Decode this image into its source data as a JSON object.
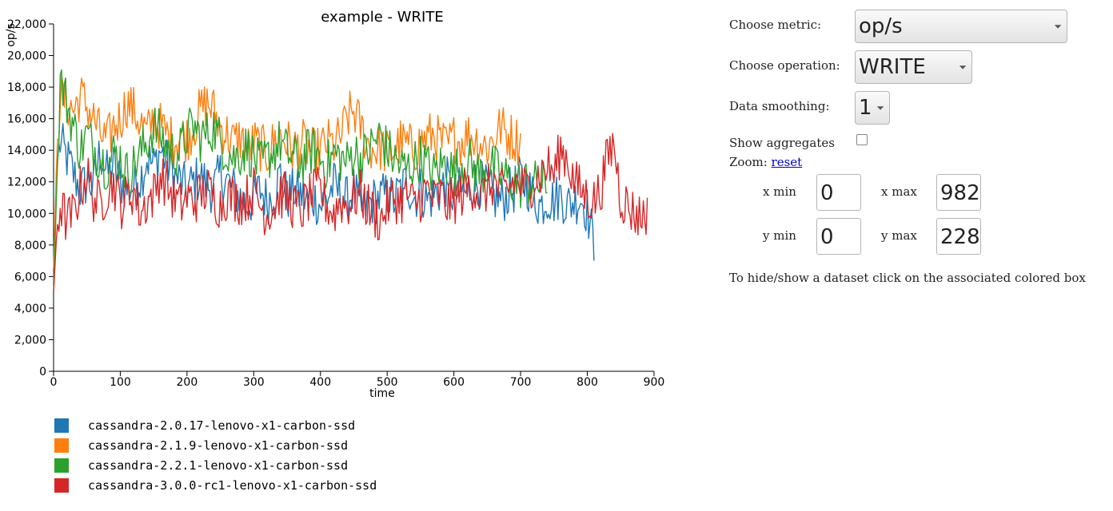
{
  "chart_data": {
    "type": "line",
    "title": "example - WRITE",
    "xlabel": "time",
    "ylabel": "op/s",
    "xlim": [
      0,
      930
    ],
    "ylim": [
      0,
      22000
    ],
    "x_ticks": [
      0,
      100,
      200,
      300,
      400,
      500,
      600,
      700,
      800,
      900
    ],
    "y_ticks": [
      0,
      2000,
      4000,
      6000,
      8000,
      10000,
      12000,
      14000,
      16000,
      18000,
      20000,
      22000
    ],
    "x_tick_labels": [
      "0",
      "100",
      "200",
      "300",
      "400",
      "500",
      "600",
      "700",
      "800",
      "900"
    ],
    "y_tick_labels": [
      "0",
      "2,000",
      "4,000",
      "6,000",
      "8,000",
      "10,000",
      "12,000",
      "14,000",
      "16,000",
      "18,000",
      "20,000",
      "22,000"
    ],
    "grid": false,
    "series": [
      {
        "name": "cassandra-2.0.17-lenovo-x1-carbon-ssd",
        "color": "#1f77b4",
        "x_end": 810,
        "x": [
          0,
          5,
          10,
          20,
          30,
          40,
          50,
          60,
          70,
          80,
          90,
          100,
          110,
          120,
          130,
          140,
          150,
          160,
          170,
          180,
          190,
          200,
          210,
          220,
          230,
          240,
          250,
          260,
          270,
          280,
          290,
          300,
          310,
          320,
          330,
          340,
          350,
          360,
          370,
          380,
          390,
          400,
          410,
          420,
          430,
          440,
          450,
          460,
          470,
          480,
          490,
          500,
          510,
          520,
          530,
          540,
          550,
          560,
          570,
          580,
          590,
          600,
          610,
          620,
          630,
          640,
          650,
          660,
          670,
          680,
          690,
          700,
          710,
          720,
          730,
          740,
          750,
          760,
          770,
          780,
          790,
          800,
          810
        ],
        "y": [
          5500,
          13000,
          14500,
          13500,
          12500,
          11500,
          12000,
          11800,
          14000,
          12500,
          13000,
          12000,
          11500,
          11800,
          12200,
          13500,
          13000,
          14000,
          13200,
          12500,
          12000,
          11500,
          12000,
          12300,
          11800,
          11500,
          12500,
          12000,
          11500,
          11000,
          10500,
          11000,
          11500,
          10800,
          11200,
          12500,
          11000,
          11500,
          11200,
          10800,
          11000,
          10500,
          11000,
          11800,
          11200,
          10800,
          11500,
          10200,
          10500,
          10800,
          11000,
          11200,
          10800,
          11500,
          12000,
          11000,
          11500,
          10800,
          11200,
          11500,
          12000,
          11000,
          11500,
          11200,
          12000,
          11800,
          11500,
          11000,
          10800,
          11200,
          11500,
          12200,
          11800,
          11000,
          10500,
          11000,
          10800,
          11200,
          10500,
          10800,
          11000,
          10200,
          8000
        ]
      },
      {
        "name": "cassandra-2.1.9-lenovo-x1-carbon-ssd",
        "color": "#ff7f0e",
        "x_end": 700,
        "x": [
          0,
          5,
          10,
          20,
          30,
          40,
          50,
          60,
          70,
          80,
          90,
          100,
          110,
          120,
          130,
          140,
          150,
          160,
          170,
          180,
          190,
          200,
          210,
          220,
          230,
          240,
          250,
          260,
          270,
          280,
          290,
          300,
          310,
          320,
          330,
          340,
          350,
          360,
          370,
          380,
          390,
          400,
          410,
          420,
          430,
          440,
          450,
          460,
          470,
          480,
          490,
          500,
          510,
          520,
          530,
          540,
          550,
          560,
          570,
          580,
          590,
          600,
          610,
          620,
          630,
          640,
          650,
          660,
          670,
          680,
          690,
          700
        ],
        "y": [
          6500,
          14000,
          17500,
          17000,
          16500,
          17500,
          16800,
          16000,
          15000,
          14500,
          15500,
          16000,
          17000,
          16500,
          15800,
          15000,
          16000,
          15500,
          15000,
          14500,
          15000,
          14800,
          15500,
          16500,
          17000,
          16500,
          15500,
          15000,
          14500,
          14800,
          14000,
          14500,
          14200,
          13800,
          14500,
          15000,
          14500,
          14000,
          14500,
          14200,
          13800,
          14000,
          14500,
          14300,
          14800,
          16000,
          16500,
          15500,
          14500,
          14000,
          14200,
          13800,
          14000,
          14500,
          14300,
          14000,
          14500,
          14800,
          15000,
          14500,
          14200,
          14800,
          14500,
          15000,
          14800,
          14500,
          14200,
          14800,
          15500,
          15000,
          14800,
          14500
        ]
      },
      {
        "name": "cassandra-2.2.1-lenovo-x1-carbon-ssd",
        "color": "#2ca02c",
        "x_end": 740,
        "x": [
          0,
          5,
          10,
          20,
          30,
          40,
          50,
          60,
          70,
          80,
          90,
          100,
          110,
          120,
          130,
          140,
          150,
          160,
          170,
          180,
          190,
          200,
          210,
          220,
          230,
          240,
          250,
          260,
          270,
          280,
          290,
          300,
          310,
          320,
          330,
          340,
          350,
          360,
          370,
          380,
          390,
          400,
          410,
          420,
          430,
          440,
          450,
          460,
          470,
          480,
          490,
          500,
          510,
          520,
          530,
          540,
          550,
          560,
          570,
          580,
          590,
          600,
          610,
          620,
          630,
          640,
          650,
          660,
          670,
          680,
          690,
          700,
          710,
          720,
          730,
          740
        ],
        "y": [
          5000,
          12000,
          18500,
          17000,
          15500,
          14000,
          15000,
          14200,
          13500,
          13000,
          13800,
          13500,
          12500,
          13000,
          13800,
          14500,
          15500,
          15000,
          14200,
          13800,
          14000,
          15000,
          15500,
          14800,
          15000,
          15500,
          14500,
          14000,
          13500,
          13800,
          14200,
          13500,
          13000,
          13500,
          14000,
          14500,
          13800,
          13500,
          13200,
          13800,
          14000,
          13500,
          13000,
          13800,
          13500,
          13200,
          14000,
          13500,
          13800,
          14500,
          15000,
          14000,
          13500,
          13000,
          12800,
          13200,
          13500,
          13000,
          12500,
          13000,
          13200,
          12500,
          13000,
          13500,
          12800,
          12500,
          13000,
          12800,
          12500,
          12200,
          12000,
          11800,
          12000,
          11800,
          12000,
          11500
        ]
      },
      {
        "name": "cassandra-3.0.0-rc1-lenovo-x1-carbon-ssd",
        "color": "#d62728",
        "x_end": 890,
        "x": [
          0,
          5,
          10,
          20,
          30,
          40,
          50,
          60,
          70,
          80,
          90,
          100,
          110,
          120,
          130,
          140,
          150,
          160,
          170,
          180,
          190,
          200,
          210,
          220,
          230,
          240,
          250,
          260,
          270,
          280,
          290,
          300,
          310,
          320,
          330,
          340,
          350,
          360,
          370,
          380,
          390,
          400,
          410,
          420,
          430,
          440,
          450,
          460,
          470,
          480,
          490,
          500,
          510,
          520,
          530,
          540,
          550,
          560,
          570,
          580,
          590,
          600,
          610,
          620,
          630,
          640,
          650,
          660,
          670,
          680,
          690,
          700,
          710,
          720,
          730,
          740,
          750,
          760,
          770,
          780,
          790,
          800,
          810,
          820,
          830,
          840,
          850,
          860,
          870,
          880,
          890
        ],
        "y": [
          5000,
          9000,
          10500,
          9500,
          10000,
          11500,
          12500,
          11000,
          10500,
          11500,
          12000,
          10500,
          11000,
          11500,
          10000,
          10800,
          11200,
          12500,
          11800,
          11000,
          10500,
          11000,
          10800,
          11200,
          11500,
          11000,
          10500,
          11200,
          11000,
          10800,
          11000,
          11500,
          10500,
          10000,
          10500,
          11200,
          11000,
          10500,
          10000,
          10800,
          11200,
          11500,
          10500,
          10000,
          10800,
          10500,
          11000,
          11200,
          10500,
          10000,
          9500,
          10500,
          11000,
          10800,
          11200,
          10500,
          11000,
          11500,
          10800,
          11200,
          10500,
          10800,
          11200,
          11500,
          11800,
          11000,
          11500,
          12000,
          11200,
          11500,
          12000,
          11800,
          11500,
          12200,
          12500,
          13000,
          12500,
          14000,
          13500,
          12000,
          11500,
          11000,
          10800,
          11500,
          13500,
          14500,
          11000,
          10500,
          10000,
          9800,
          10200
        ]
      }
    ]
  },
  "controls": {
    "metric_label": "Choose metric:",
    "metric_value": "op/s",
    "operation_label": "Choose operation:",
    "operation_value": "WRITE",
    "smoothing_label": "Data smoothing:",
    "smoothing_value": "1",
    "aggregates_label": "Show aggregates",
    "zoom_label": "Zoom:",
    "zoom_reset": "reset",
    "xmin_label": "x min",
    "xmin_value": "0",
    "xmax_label": "x max",
    "xmax_value": "982",
    "ymin_label": "y min",
    "ymin_value": "0",
    "ymax_label": "y max",
    "ymax_value": "228",
    "hint": "To hide/show a dataset click on the associated colored box"
  }
}
